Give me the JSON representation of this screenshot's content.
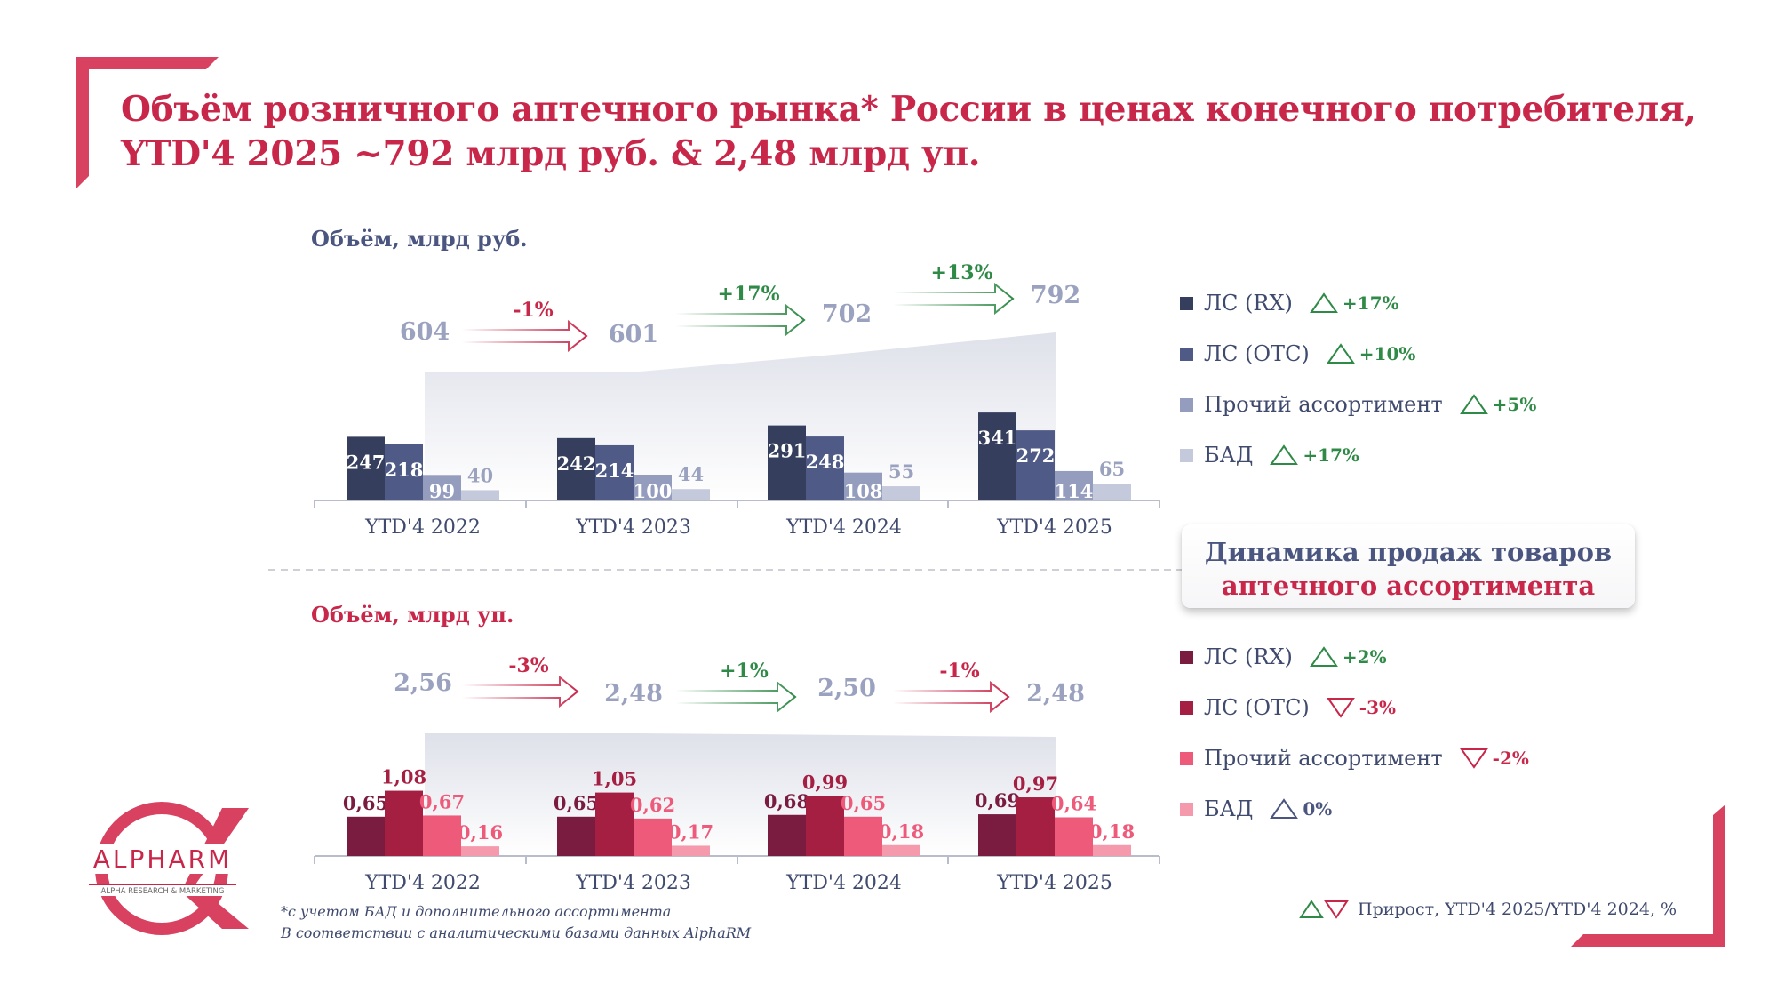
{
  "title": {
    "line1": "Объём розничного аптечного рынка* России в ценах конечного потребителя,",
    "line2": "YTD'4 2025 ~792 млрд руб. & 2,48 млрд уп."
  },
  "colors": {
    "brand": "#c8274a",
    "growth_up": "#2f8a47",
    "growth_down": "#c8274a",
    "growth_flat": "#4b5680",
    "total_value": "#9aa2bf"
  },
  "highlight_card": {
    "line1": "Динамика продаж товаров",
    "line2": "аптечного ассортимента"
  },
  "chart_data": [
    {
      "type": "bar",
      "title": "Объём, млрд руб.",
      "categories": [
        "YTD'4 2022",
        "YTD'4 2023",
        "YTD'4 2024",
        "YTD'4 2025"
      ],
      "series": [
        {
          "name": "ЛС (RX)",
          "values": [
            247,
            242,
            291,
            341
          ],
          "labels": [
            "247",
            "242",
            "291",
            "341"
          ],
          "color": "#353f5d",
          "growth": "+17%",
          "trend": "up"
        },
        {
          "name": "ЛС (OTC)",
          "values": [
            218,
            214,
            248,
            272
          ],
          "labels": [
            "218",
            "214",
            "248",
            "272"
          ],
          "color": "#4f5b86",
          "growth": "+10%",
          "trend": "up"
        },
        {
          "name": "Прочий ассортимент",
          "values": [
            99,
            100,
            108,
            114
          ],
          "labels": [
            "99",
            "100",
            "108",
            "114"
          ],
          "color": "#959dbe",
          "growth": "+5%",
          "trend": "up"
        },
        {
          "name": "БАД",
          "values": [
            40,
            44,
            55,
            65
          ],
          "labels": [
            "40",
            "44",
            "55",
            "65"
          ],
          "color": "#c5c9dc",
          "growth": "+17%",
          "trend": "up"
        }
      ],
      "totals": [
        "604",
        "601",
        "702",
        "792"
      ],
      "year_changes": [
        {
          "label": "-1%",
          "trend": "down"
        },
        {
          "label": "+17%",
          "trend": "up"
        },
        {
          "label": "+13%",
          "trend": "up"
        }
      ],
      "ylim": [
        0,
        400
      ]
    },
    {
      "type": "bar",
      "title": "Объём, млрд уп.",
      "categories": [
        "YTD'4 2022",
        "YTD'4 2023",
        "YTD'4 2024",
        "YTD'4 2025"
      ],
      "series": [
        {
          "name": "ЛС (RX)",
          "values": [
            0.65,
            0.65,
            0.68,
            0.69
          ],
          "labels": [
            "0,65",
            "0,65",
            "0,68",
            "0,69"
          ],
          "color": "#7a1c3f",
          "growth": "+2%",
          "trend": "up"
        },
        {
          "name": "ЛС (OTC)",
          "values": [
            1.08,
            1.05,
            0.99,
            0.97
          ],
          "labels": [
            "1,08",
            "1,05",
            "0,99",
            "0,97"
          ],
          "color": "#a41f42",
          "growth": "-3%",
          "trend": "down"
        },
        {
          "name": "Прочий ассортимент",
          "values": [
            0.67,
            0.62,
            0.65,
            0.64
          ],
          "labels": [
            "0,67",
            "0,62",
            "0,65",
            "0,64"
          ],
          "color": "#ee5a7a",
          "growth": "-2%",
          "trend": "down"
        },
        {
          "name": "БАД",
          "values": [
            0.16,
            0.17,
            0.18,
            0.18
          ],
          "labels": [
            "0,16",
            "0,17",
            "0,18",
            "0,18"
          ],
          "color": "#f59aad",
          "growth": "0%",
          "trend": "flat"
        }
      ],
      "totals": [
        "2,56",
        "2,48",
        "2,50",
        "2,48"
      ],
      "year_changes": [
        {
          "label": "-3%",
          "trend": "down"
        },
        {
          "label": "+1%",
          "trend": "up"
        },
        {
          "label": "-1%",
          "trend": "down"
        }
      ],
      "ylim": [
        0,
        1.6
      ]
    }
  ],
  "footnotes": {
    "line1": "*с учетом БАД и дополнительного ассортимента",
    "line2": "В соответствии с аналитическими базами данных AlphaRM"
  },
  "growth_note": "Прирост, YTD'4 2025/YTD'4 2024, %",
  "brand": {
    "name": "ALPHARM",
    "tagline": "ALPHA RESEARCH & MARKETING"
  }
}
